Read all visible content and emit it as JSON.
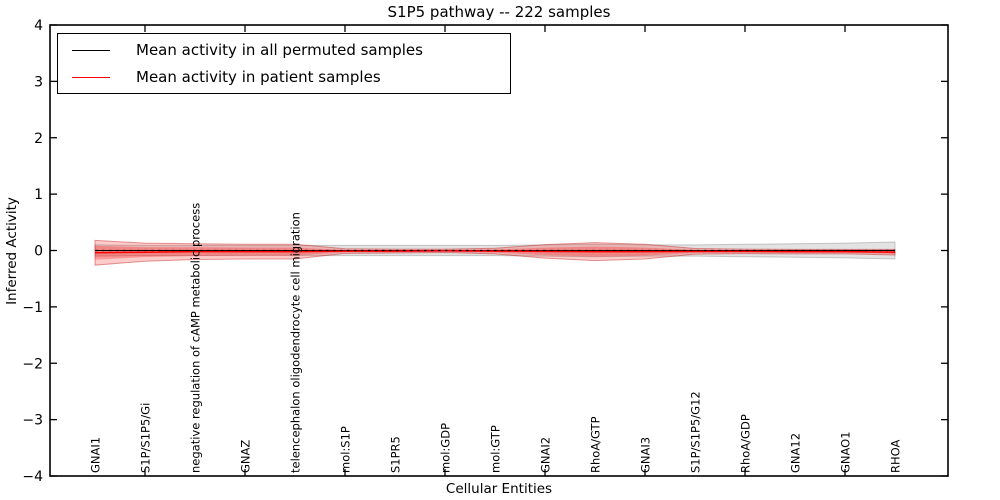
{
  "colors": {
    "permuted_line": "#000000",
    "patient_line": "#ff0000",
    "permuted_band": "rgba(128,128,128,0.22)",
    "permuted_band_edge": "rgba(90,90,90,0.30)",
    "patient_band": "rgba(255,0,0,0.20)",
    "patient_band_inner": "rgba(255,0,0,0.26)",
    "patient_band_edge": "rgba(190,30,30,0.45)",
    "spine": "#000000"
  },
  "chart_data": {
    "type": "line",
    "title": "S1P5 pathway -- 222 samples",
    "xlabel": "Cellular Entities",
    "ylabel": "Inferred Activity",
    "ylim": [
      -4,
      4
    ],
    "yticks": [
      4,
      3,
      2,
      1,
      0,
      -1,
      -2,
      -3,
      -4
    ],
    "grid": false,
    "legend_position": "upper left",
    "categories": [
      "GNAI1",
      "S1P/S1P5/Gi",
      "negative regulation of cAMP metabolic process",
      "GNAZ",
      "telencephalon oligodendrocyte cell migration",
      "mol:S1P",
      "S1PR5",
      "mol:GDP",
      "mol:GTP",
      "GNAI2",
      "RhoA/GTP",
      "GNAI3",
      "S1P/S1P5/G12",
      "RhoA/GDP",
      "GNA12",
      "GNAO1",
      "RHOA"
    ],
    "series": [
      {
        "name": "Mean activity in all permuted samples",
        "style": "solid-with-dots",
        "values": [
          0.0,
          0.0,
          0.0,
          0.0,
          0.0,
          0.0,
          0.0,
          0.0,
          0.0,
          0.0,
          0.0,
          0.0,
          0.0,
          0.0,
          0.0,
          0.0,
          0.0
        ]
      },
      {
        "name": "Mean activity in patient samples",
        "style": "solid",
        "values": [
          -0.04,
          -0.03,
          -0.02,
          -0.02,
          -0.02,
          -0.01,
          -0.01,
          -0.005,
          -0.01,
          -0.015,
          -0.02,
          -0.02,
          -0.015,
          -0.015,
          -0.02,
          -0.02,
          -0.03
        ]
      }
    ],
    "bands": [
      {
        "name": "permuted-samples-std-band",
        "mean": [
          0.0,
          0.0,
          0.0,
          0.0,
          0.0,
          0.0,
          0.0,
          0.0,
          0.0,
          0.0,
          0.0,
          0.0,
          0.0,
          0.0,
          0.0,
          0.0,
          0.0
        ],
        "std": [
          0.1,
          0.09,
          0.09,
          0.09,
          0.09,
          0.09,
          0.09,
          0.09,
          0.09,
          0.1,
          0.11,
          0.1,
          0.1,
          0.11,
          0.12,
          0.13,
          0.15
        ]
      },
      {
        "name": "patient-samples-std-band",
        "mean": [
          -0.04,
          -0.03,
          -0.02,
          -0.02,
          -0.02,
          -0.01,
          -0.01,
          -0.005,
          -0.01,
          -0.015,
          -0.02,
          -0.02,
          -0.015,
          -0.015,
          -0.02,
          -0.02,
          -0.03
        ],
        "std": [
          0.22,
          0.16,
          0.14,
          0.13,
          0.13,
          0.04,
          0.035,
          0.03,
          0.05,
          0.12,
          0.16,
          0.13,
          0.05,
          0.04,
          0.04,
          0.04,
          0.05
        ]
      }
    ]
  }
}
